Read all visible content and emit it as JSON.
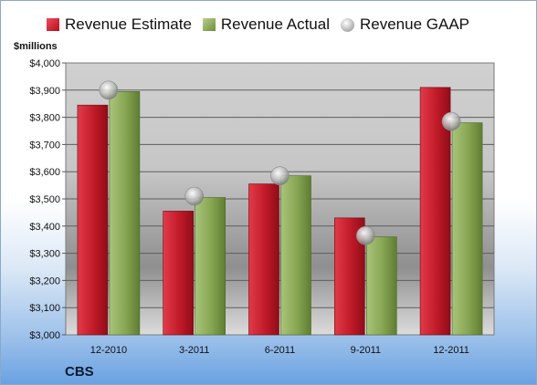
{
  "legend": {
    "estimate": "Revenue Estimate",
    "actual": "Revenue Actual",
    "gaap": "Revenue GAAP"
  },
  "units_label": "$millions",
  "company": "CBS",
  "colors": {
    "estimate": "#c8202e",
    "actual": "#8aab58",
    "gaap": "#c8c8c8"
  },
  "chart_data": {
    "type": "bar",
    "categories": [
      "12-2010",
      "3-2011",
      "6-2011",
      "9-2011",
      "12-2011"
    ],
    "series": [
      {
        "name": "Revenue Estimate",
        "values": [
          3845,
          3455,
          3555,
          3430,
          3910
        ]
      },
      {
        "name": "Revenue Actual",
        "values": [
          3895,
          3505,
          3585,
          3360,
          3780
        ]
      },
      {
        "name": "Revenue GAAP",
        "type": "marker",
        "values": [
          3900,
          3510,
          3585,
          3365,
          3785
        ]
      }
    ],
    "ylabel": "$millions",
    "ylim": [
      3000,
      4000
    ],
    "yticks": [
      "$3,000",
      "$3,100",
      "$3,200",
      "$3,300",
      "$3,400",
      "$3,500",
      "$3,600",
      "$3,700",
      "$3,800",
      "$3,900",
      "$4,000"
    ],
    "grid": true,
    "legend_position": "top"
  }
}
